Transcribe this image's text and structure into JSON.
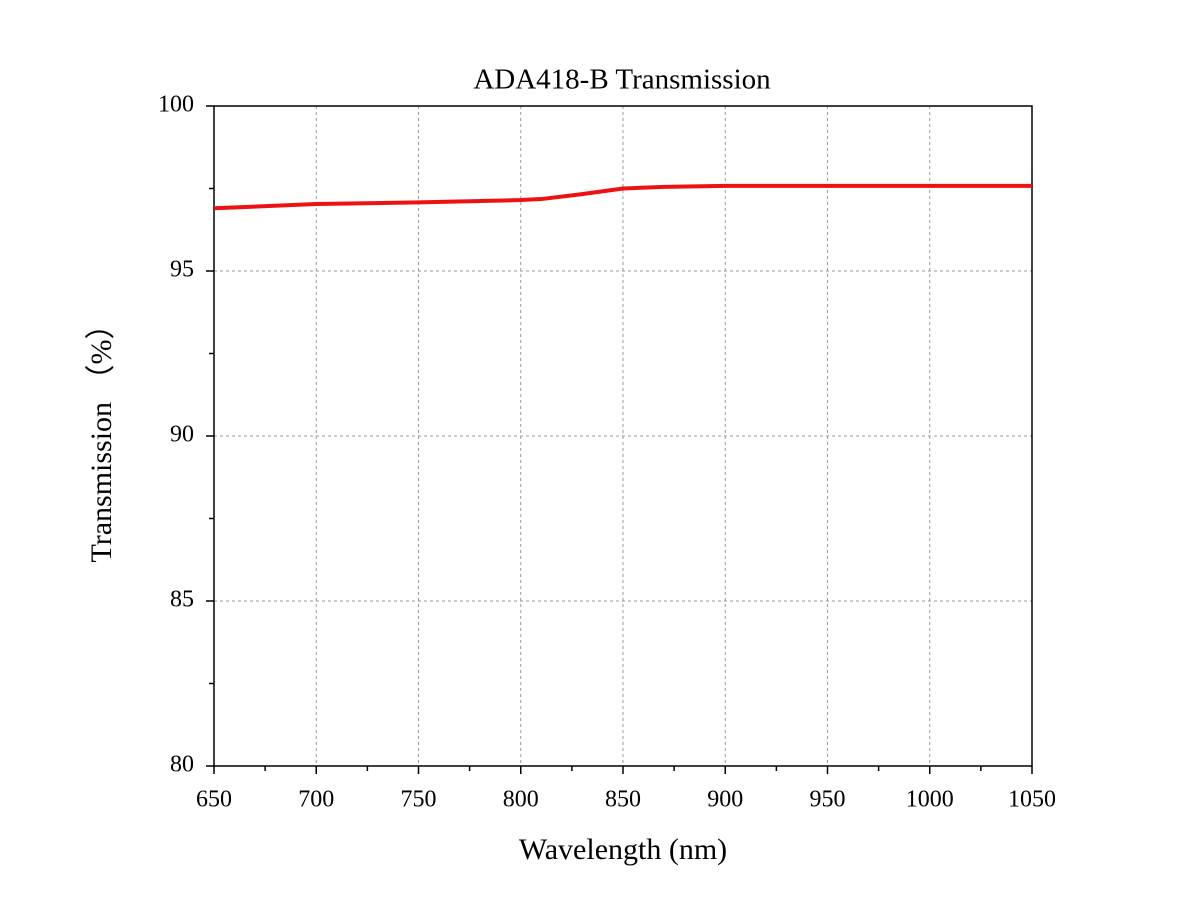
{
  "chart_data": {
    "type": "line",
    "title": "ADA418-B Transmission",
    "x_label": "Wavelength (nm)",
    "y_label": "Transmission （%）",
    "x": [
      650,
      700,
      750,
      800,
      810,
      830,
      850,
      870,
      900,
      950,
      1000,
      1050
    ],
    "values": [
      96.9,
      97.03,
      97.08,
      97.15,
      97.18,
      97.33,
      97.5,
      97.55,
      97.58,
      97.58,
      97.58,
      97.58
    ],
    "color": "#ee1111",
    "xlim": [
      650,
      1050
    ],
    "xticks": [
      650,
      700,
      750,
      800,
      850,
      900,
      950,
      1000,
      1050
    ],
    "xminorticks": [
      675,
      725,
      775,
      825,
      875,
      925,
      975,
      1025
    ],
    "ylim": [
      80,
      100
    ],
    "yticks": [
      80,
      85,
      90,
      95,
      100
    ],
    "yminorticks": [
      82.5,
      87.5,
      92.5,
      97.5
    ],
    "grid": true
  }
}
